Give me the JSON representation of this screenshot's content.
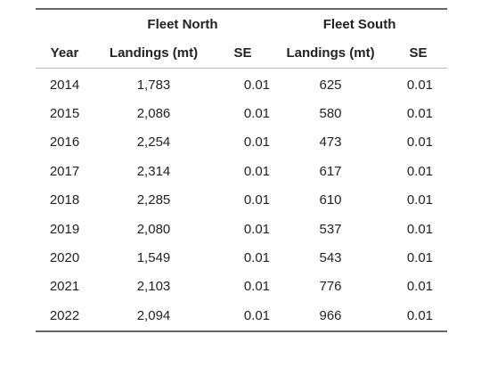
{
  "table": {
    "groups": {
      "north": "Fleet North",
      "south": "Fleet South"
    },
    "columns": {
      "year": "Year",
      "north_landings": "Landings (mt)",
      "north_se": "SE",
      "south_landings": "Landings (mt)",
      "south_se": "SE"
    },
    "rows": [
      {
        "year": "2014",
        "north_landings": "1,783",
        "north_se": "0.01",
        "south_landings": "625",
        "south_se": "0.01"
      },
      {
        "year": "2015",
        "north_landings": "2,086",
        "north_se": "0.01",
        "south_landings": "580",
        "south_se": "0.01"
      },
      {
        "year": "2016",
        "north_landings": "2,254",
        "north_se": "0.01",
        "south_landings": "473",
        "south_se": "0.01"
      },
      {
        "year": "2017",
        "north_landings": "2,314",
        "north_se": "0.01",
        "south_landings": "617",
        "south_se": "0.01"
      },
      {
        "year": "2018",
        "north_landings": "2,285",
        "north_se": "0.01",
        "south_landings": "610",
        "south_se": "0.01"
      },
      {
        "year": "2019",
        "north_landings": "2,080",
        "north_se": "0.01",
        "south_landings": "537",
        "south_se": "0.01"
      },
      {
        "year": "2020",
        "north_landings": "1,549",
        "north_se": "0.01",
        "south_landings": "543",
        "south_se": "0.01"
      },
      {
        "year": "2021",
        "north_landings": "2,103",
        "north_se": "0.01",
        "south_landings": "776",
        "south_se": "0.01"
      },
      {
        "year": "2022",
        "north_landings": "2,094",
        "north_se": "0.01",
        "south_landings": "966",
        "south_se": "0.01"
      }
    ]
  }
}
